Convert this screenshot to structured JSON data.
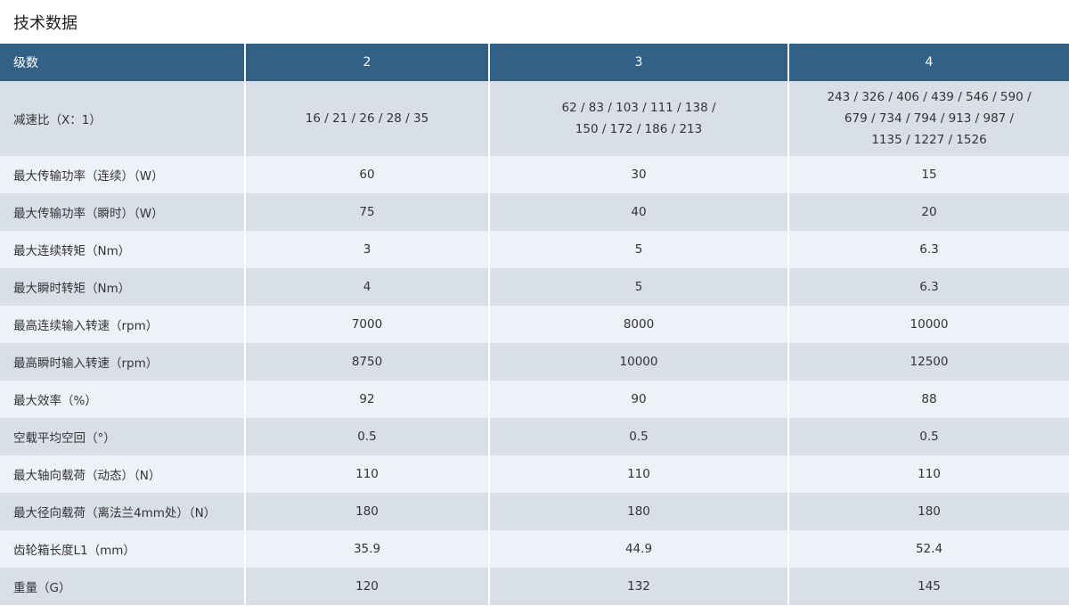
{
  "title": "技术数据",
  "header": [
    "级数",
    "2",
    "3",
    "4"
  ],
  "ratio": {
    "label": "减速比（X：1）",
    "col2": [
      "16 / 21 / 26 / 28 / 35"
    ],
    "col3": [
      "62 / 83 / 103 / 111 / 138 /",
      "150 / 172 / 186 / 213"
    ],
    "col4": [
      "243 / 326 / 406 / 439 / 546 / 590 /",
      "679 / 734 / 794 / 913 / 987 /",
      "1135 / 1227 / 1526"
    ]
  },
  "rows": [
    [
      "最大传输功率（连续）（W）",
      "60",
      "30",
      "15"
    ],
    [
      "最大传输功率（瞬时）（W）",
      "75",
      "40",
      "20"
    ],
    [
      "最大连续转矩（Nm）",
      "3",
      "5",
      "6.3"
    ],
    [
      "最大瞬时转矩（Nm）",
      "4",
      "5",
      "6.3"
    ],
    [
      "最高连续输入转速（rpm）",
      "7000",
      "8000",
      "10000"
    ],
    [
      "最高瞬时输入转速（rpm）",
      "8750",
      "10000",
      "12500"
    ],
    [
      "最大效率（%）",
      "92",
      "90",
      "88"
    ],
    [
      "空载平均空回（°）",
      "0.5",
      "0.5",
      "0.5"
    ],
    [
      "最大轴向载荷（动态）（N）",
      "110",
      "110",
      "110"
    ],
    [
      "最大径向载荷（离法兰4mm处）（N）",
      "180",
      "180",
      "180"
    ],
    [
      "齿轮箱长度L1（mm）",
      "35.9",
      "44.9",
      "52.4"
    ],
    [
      "重量（G）",
      "120",
      "132",
      "145"
    ]
  ],
  "colors": {
    "header": "#336085",
    "row_dark": "#d9dfe9",
    "row_light": "#eef1f8"
  }
}
